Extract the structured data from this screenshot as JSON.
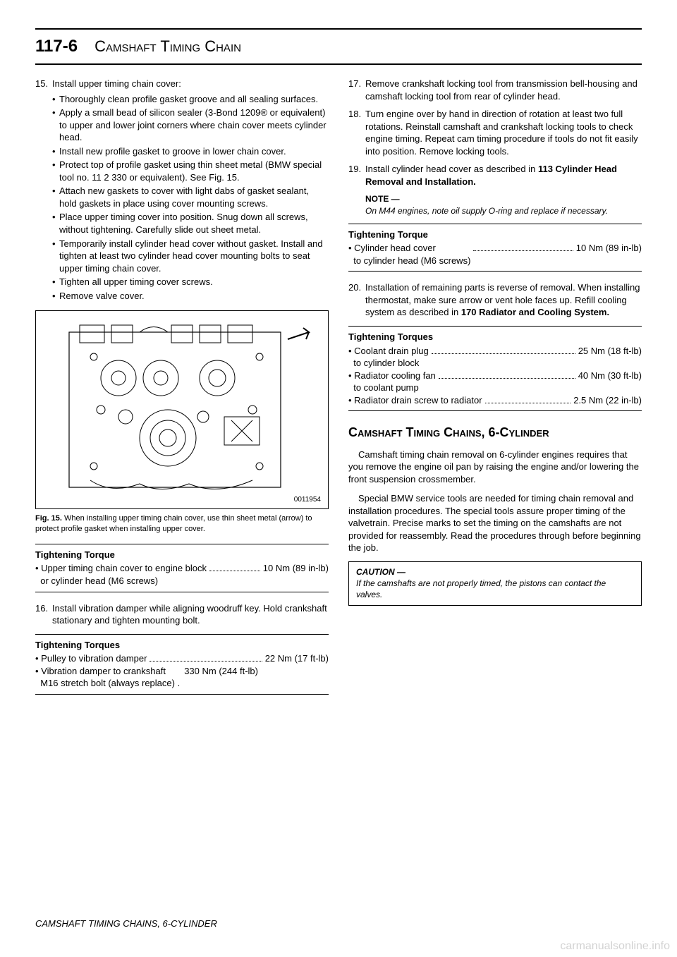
{
  "page_number": "117-6",
  "chapter": "Camshaft Timing Chain",
  "left": {
    "step15": {
      "num": "15.",
      "text": "Install upper timing chain cover:",
      "bullets": [
        "Thoroughly clean profile gasket groove and all sealing surfaces.",
        "Apply a small bead of silicon sealer (3-Bond 1209® or equivalent) to upper and lower joint corners where chain cover meets cylinder head.",
        "Install new profile gasket to groove in lower chain cover.",
        "Protect top of profile gasket using thin sheet metal (BMW special tool no. 11 2 330 or equivalent). See Fig. 15.",
        "Attach new gaskets to cover with light dabs of gasket sealant, hold gaskets in place using cover mounting screws.",
        "Place upper timing cover into position. Snug down all screws, without tightening. Carefully slide out sheet metal.",
        "Temporarily install cylinder head cover without gasket. Install and tighten at least two cylinder head cover mounting bolts to seat upper timing chain cover.",
        "Tighten all upper timing cover screws.",
        "Remove valve cover."
      ]
    },
    "figure": {
      "id": "0011954",
      "caption_lead": "Fig. 15.",
      "caption_text": " When installing upper timing chain cover, use thin sheet metal (arrow) to protect profile gasket when installing upper cover."
    },
    "tq1": {
      "title": "Tightening Torque",
      "line1_label": "• Upper timing chain cover to engine block\n  or cylinder head (M6 screws)",
      "line1_val": "10 Nm (89 in-lb)"
    },
    "step16": {
      "num": "16.",
      "text": "Install vibration damper while aligning woodruff key. Hold crankshaft stationary and tighten mounting bolt."
    },
    "tq2": {
      "title": "Tightening Torques",
      "l1_label": "• Pulley to vibration damper",
      "l1_val": "22 Nm (17 ft-lb)",
      "l2_label": "• Vibration damper to crankshaft\n  M16 stretch bolt (always replace) .",
      "l2_val": "330 Nm (244 ft-lb)"
    }
  },
  "right": {
    "step17": {
      "num": "17.",
      "text": "Remove crankshaft locking tool from transmission bell-housing and camshaft locking tool from rear of cylinder head."
    },
    "step18": {
      "num": "18.",
      "text": "Turn engine over by hand in direction of rotation at least two full rotations. Reinstall camshaft and crankshaft locking tools to check engine timing. Repeat cam timing procedure if tools do not fit easily into position. Remove locking tools."
    },
    "step19": {
      "num": "19.",
      "text_html": "Install cylinder head cover as described in <b>113 Cylinder Head Removal and Installation.</b>"
    },
    "note": {
      "head": "NOTE —",
      "body": "On M44 engines, note oil supply O-ring and replace if necessary."
    },
    "tq3": {
      "title": "Tightening Torque",
      "l1_label": "• Cylinder head cover\n  to cylinder head (M6 screws)",
      "l1_val": "10 Nm (89 in-lb)"
    },
    "step20": {
      "num": "20.",
      "text_html": "Installation of remaining parts is reverse of removal. When installing thermostat, make sure arrow or vent hole faces up. Refill cooling system as described in <b>170 Radiator and Cooling System.</b>"
    },
    "tq4": {
      "title": "Tightening Torques",
      "l1_label": "• Coolant drain plug\n  to cylinder block",
      "l1_val": "25 Nm (18 ft-lb)",
      "l2_label": "• Radiator cooling fan\n  to coolant pump",
      "l2_val": "40 Nm (30 ft-lb)",
      "l3_label": "• Radiator drain screw to radiator",
      "l3_val": "2.5 Nm (22 in-lb)"
    },
    "section": "Camshaft Timing Chains, 6-Cylinder",
    "p1": "Camshaft timing chain removal on 6-cylinder engines requires that you remove the engine oil pan by raising the engine and/or lowering the front suspension crossmember.",
    "p2": "Special BMW service tools are needed for timing chain removal and installation procedures. The special tools assure proper timing of the valvetrain. Precise marks to set the timing on the camshafts are not provided for reassembly. Read the procedures through before beginning the job.",
    "caution": {
      "head": "CAUTION —",
      "body": "If the camshafts are not properly timed, the pistons can contact the valves."
    }
  },
  "footer": "CAMSHAFT TIMING CHAINS, 6-CYLINDER",
  "watermark": "carmanualsonline.info"
}
